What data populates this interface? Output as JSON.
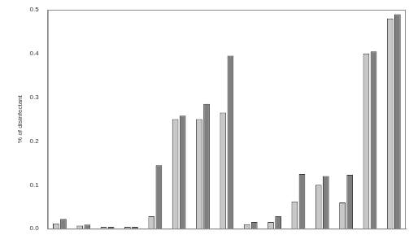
{
  "chart_data": {
    "type": "bar",
    "y_label": "% of disinfectant",
    "categories": [
      null,
      null,
      null,
      null,
      null,
      null,
      null,
      null,
      null,
      null,
      null,
      null,
      null,
      null,
      null
    ],
    "series": [
      {
        "color": "#c8c8c8",
        "values": [
          0.012,
          0.007,
          0.004,
          0.004,
          0.028,
          0.25,
          0.25,
          0.265,
          0.01,
          0.015,
          0.062,
          0.1,
          0.06,
          0.4,
          0.48
        ]
      },
      {
        "color": "#7f7f7f",
        "values": [
          0.022,
          0.009,
          0.004,
          0.004,
          0.145,
          0.258,
          0.285,
          0.395,
          0.015,
          0.028,
          0.125,
          0.12,
          0.123,
          0.405,
          0.49
        ]
      }
    ],
    "ylim": [
      0,
      0.5
    ],
    "yticks": [
      {
        "value": 0,
        "label": "0.0"
      },
      {
        "value": 0.1,
        "label": "0.1"
      },
      {
        "value": 0.2,
        "label": "0.2"
      },
      {
        "value": 0.3,
        "label": "0.3"
      },
      {
        "value": 0.4,
        "label": "0.4"
      },
      {
        "value": 0.5,
        "label": "0.5"
      }
    ],
    "grid": false,
    "tick_labels": "y"
  }
}
